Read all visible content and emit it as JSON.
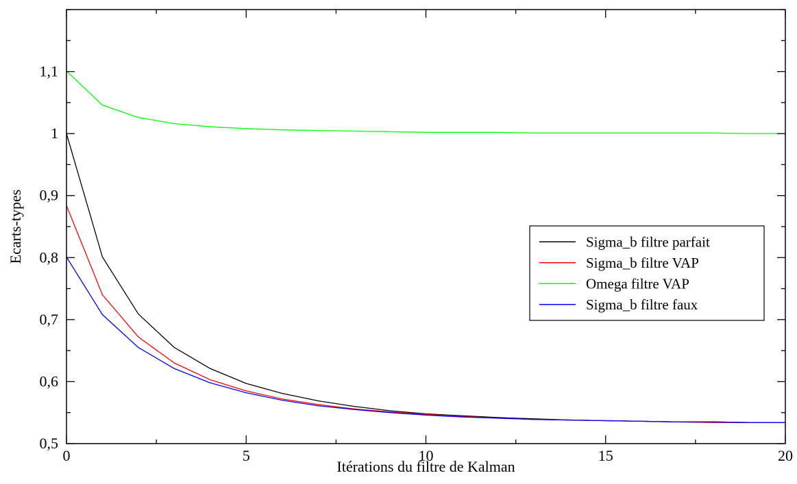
{
  "chart_data": {
    "type": "line",
    "title": "",
    "xlabel": "Itérations du filtre de Kalman",
    "ylabel": "Ecarts-types",
    "xlim": [
      0,
      20
    ],
    "ylim": [
      0.5,
      1.2
    ],
    "x_ticks": [
      {
        "value": 0,
        "label": "0"
      },
      {
        "value": 5,
        "label": "5"
      },
      {
        "value": 10,
        "label": "10"
      },
      {
        "value": 15,
        "label": "15"
      },
      {
        "value": 20,
        "label": "20"
      }
    ],
    "x_minor_step": 2.5,
    "y_ticks": [
      {
        "value": 0.5,
        "label": "0,5"
      },
      {
        "value": 0.6,
        "label": "0,6"
      },
      {
        "value": 0.7,
        "label": "0,7"
      },
      {
        "value": 0.8,
        "label": "0,8"
      },
      {
        "value": 0.9,
        "label": "0,9"
      },
      {
        "value": 1.0,
        "label": "1"
      },
      {
        "value": 1.1,
        "label": "1,1"
      }
    ],
    "y_minor_step": 0.05,
    "grid": false,
    "legend_position": "right",
    "x": [
      0,
      1,
      2,
      3,
      4,
      5,
      6,
      7,
      8,
      9,
      10,
      11,
      12,
      13,
      14,
      15,
      16,
      17,
      18,
      19,
      20
    ],
    "series": [
      {
        "name": "Sigma_b filtre parfait",
        "color": "#000000",
        "values": [
          1.0,
          0.801,
          0.709,
          0.655,
          0.621,
          0.597,
          0.581,
          0.569,
          0.56,
          0.553,
          0.548,
          0.545,
          0.542,
          0.54,
          0.538,
          0.537,
          0.536,
          0.535,
          0.535,
          0.534,
          0.534
        ]
      },
      {
        "name": "Sigma_b filtre VAP",
        "color": "#ff0000",
        "values": [
          0.884,
          0.74,
          0.672,
          0.63,
          0.603,
          0.585,
          0.572,
          0.563,
          0.556,
          0.551,
          0.547,
          0.544,
          0.541,
          0.539,
          0.538,
          0.537,
          0.536,
          0.535,
          0.534,
          0.534,
          0.534
        ]
      },
      {
        "name": "Omega filtre VAP",
        "color": "#00ff00",
        "values": [
          1.101,
          1.046,
          1.026,
          1.016,
          1.011,
          1.008,
          1.006,
          1.005,
          1.004,
          1.003,
          1.002,
          1.002,
          1.002,
          1.001,
          1.001,
          1.001,
          1.001,
          1.001,
          1.001,
          1.0,
          1.0
        ]
      },
      {
        "name": "Sigma_b filtre faux",
        "color": "#0000ff",
        "values": [
          0.801,
          0.708,
          0.655,
          0.621,
          0.598,
          0.582,
          0.57,
          0.561,
          0.555,
          0.55,
          0.546,
          0.543,
          0.541,
          0.539,
          0.538,
          0.537,
          0.536,
          0.535,
          0.535,
          0.534,
          0.534
        ]
      }
    ]
  }
}
